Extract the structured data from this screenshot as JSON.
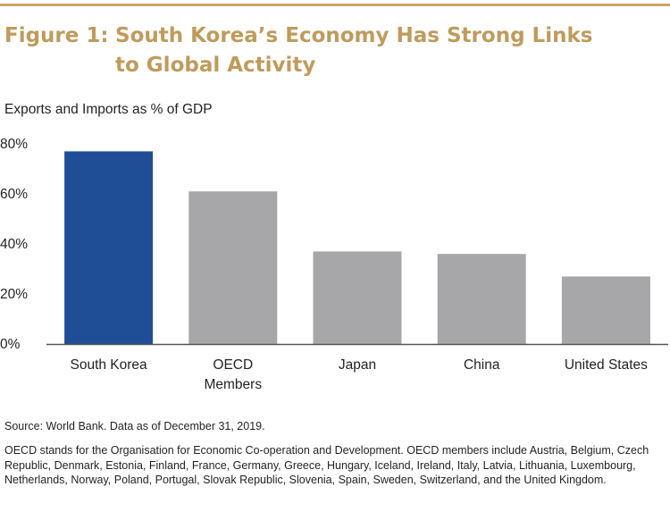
{
  "header": {
    "figure_label": "Figure 1:",
    "title_line1": "South Korea’s Economy Has Strong Links",
    "title_line2": "to Global Activity",
    "rule_color": "#c9a56a",
    "title_color": "#bf9b5c"
  },
  "chart_data": {
    "type": "bar",
    "title": "Exports and Imports as % of GDP",
    "xlabel": "",
    "ylabel": "Exports and Imports as % of GDP",
    "categories": [
      "South Korea",
      "OECD Members",
      "Japan",
      "China",
      "United States"
    ],
    "category_lines": [
      [
        "South Korea"
      ],
      [
        "OECD",
        "Members"
      ],
      [
        "Japan"
      ],
      [
        "China"
      ],
      [
        "United States"
      ]
    ],
    "values": [
      77,
      61,
      37,
      36,
      27
    ],
    "ylim": [
      0,
      80
    ],
    "yticks": [
      0,
      20,
      40,
      60,
      80
    ],
    "ytick_labels": [
      "0%",
      "20%",
      "40%",
      "60%",
      "80%"
    ],
    "grid": false,
    "colors": [
      "#1f4e96",
      "#a7a7a9",
      "#a7a7a9",
      "#a7a7a9",
      "#a7a7a9"
    ],
    "axis_color": "#555555"
  },
  "footer": {
    "source": "Source: World Bank. Data as of December 31, 2019.",
    "note": "OECD stands for the Organisation for Economic Co-operation and Development. OECD members include Austria, Belgium, Czech Republic, Denmark, Estonia, Finland, France, Germany, Greece, Hungary, Iceland, Ireland, Italy, Latvia, Lithuania, Luxembourg, Netherlands, Norway, Poland, Portugal, Slovak Republic, Slovenia, Spain, Sweden, Switzerland, and the United Kingdom."
  }
}
